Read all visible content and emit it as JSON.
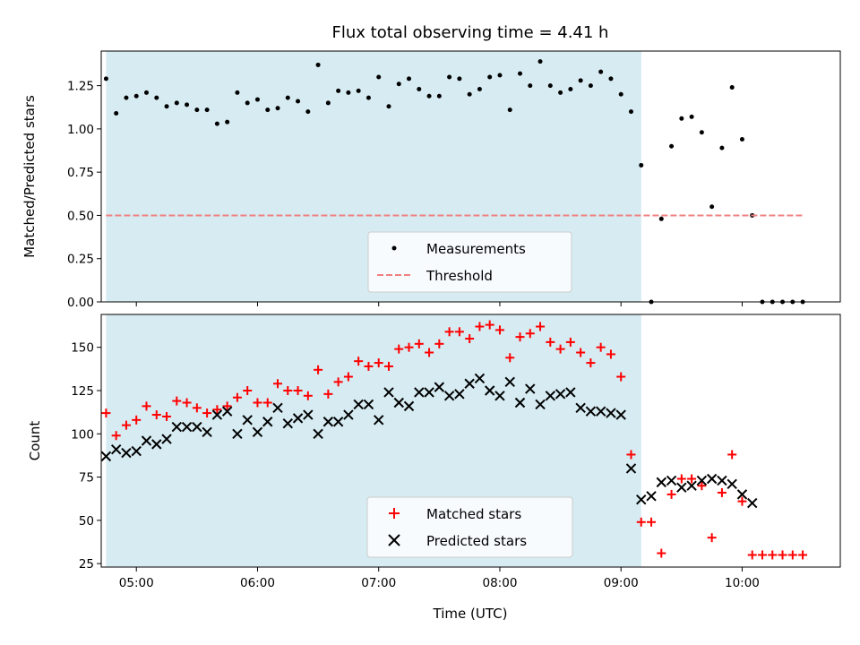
{
  "chart_data": [
    {
      "type": "scatter",
      "title": "Flux total observing time = 4.41 h",
      "xlabel": "",
      "ylabel": "Matched/Predicted stars",
      "ylim": [
        0,
        1.45
      ],
      "yticks": [
        0.0,
        0.25,
        0.5,
        0.75,
        1.0,
        1.25
      ],
      "ytick_labels": [
        "0.00",
        "0.25",
        "0.50",
        "0.75",
        "1.00",
        "1.25"
      ],
      "shaded_span": [
        "04:45",
        "09:10"
      ],
      "legend": {
        "position": "lower center",
        "entries": [
          "Measurements",
          "Threshold"
        ]
      },
      "series": [
        {
          "name": "Measurements",
          "marker": "dot",
          "color": "#000000",
          "x": [
            "04:45",
            "04:50",
            "04:55",
            "05:00",
            "05:05",
            "05:10",
            "05:15",
            "05:20",
            "05:25",
            "05:30",
            "05:35",
            "05:40",
            "05:45",
            "05:50",
            "05:55",
            "06:00",
            "06:05",
            "06:10",
            "06:15",
            "06:20",
            "06:25",
            "06:30",
            "06:35",
            "06:40",
            "06:45",
            "06:50",
            "06:55",
            "07:00",
            "07:05",
            "07:10",
            "07:15",
            "07:20",
            "07:25",
            "07:30",
            "07:35",
            "07:40",
            "07:45",
            "07:50",
            "07:55",
            "08:00",
            "08:05",
            "08:10",
            "08:15",
            "08:20",
            "08:25",
            "08:30",
            "08:35",
            "08:40",
            "08:45",
            "08:50",
            "08:55",
            "09:00",
            "09:05",
            "09:10",
            "09:15",
            "09:20",
            "09:25",
            "09:30",
            "09:35",
            "09:40",
            "09:45",
            "09:50",
            "09:55",
            "10:00",
            "10:05",
            "10:10",
            "10:15",
            "10:20",
            "10:25",
            "10:30"
          ],
          "y": [
            1.29,
            1.09,
            1.18,
            1.19,
            1.21,
            1.18,
            1.13,
            1.15,
            1.14,
            1.11,
            1.11,
            1.03,
            1.04,
            1.21,
            1.15,
            1.17,
            1.11,
            1.12,
            1.18,
            1.16,
            1.1,
            1.37,
            1.15,
            1.22,
            1.21,
            1.22,
            1.18,
            1.3,
            1.13,
            1.26,
            1.29,
            1.23,
            1.19,
            1.19,
            1.3,
            1.29,
            1.2,
            1.23,
            1.3,
            1.31,
            1.11,
            1.32,
            1.25,
            1.39,
            1.25,
            1.21,
            1.23,
            1.28,
            1.25,
            1.33,
            1.29,
            1.2,
            1.1,
            0.79,
            0.0,
            0.48,
            0.9,
            1.06,
            1.07,
            0.98,
            0.55,
            0.89,
            1.24,
            0.94,
            0.5,
            0.0,
            0.0,
            0.0,
            0.0,
            0.0
          ]
        },
        {
          "name": "Threshold",
          "style": "dashed",
          "color": "#f08080",
          "x": [
            "04:45",
            "10:30"
          ],
          "y": [
            0.5,
            0.5
          ]
        }
      ]
    },
    {
      "type": "scatter",
      "title": "",
      "xlabel": "Time (UTC)",
      "ylabel": "Count",
      "ylim": [
        23,
        169
      ],
      "yticks": [
        25,
        50,
        75,
        100,
        125,
        150
      ],
      "ytick_labels": [
        "25",
        "50",
        "75",
        "100",
        "125",
        "150"
      ],
      "xticks": [
        "05:00",
        "06:00",
        "07:00",
        "08:00",
        "09:00",
        "10:00"
      ],
      "shaded_span": [
        "04:45",
        "09:10"
      ],
      "legend": {
        "position": "lower center",
        "entries": [
          "Matched stars",
          "Predicted stars"
        ]
      },
      "series": [
        {
          "name": "Matched stars",
          "marker": "plus",
          "color": "#ff0000",
          "x": [
            "04:45",
            "04:50",
            "04:55",
            "05:00",
            "05:05",
            "05:10",
            "05:15",
            "05:20",
            "05:25",
            "05:30",
            "05:35",
            "05:40",
            "05:45",
            "05:50",
            "05:55",
            "06:00",
            "06:05",
            "06:10",
            "06:15",
            "06:20",
            "06:25",
            "06:30",
            "06:35",
            "06:40",
            "06:45",
            "06:50",
            "06:55",
            "07:00",
            "07:05",
            "07:10",
            "07:15",
            "07:20",
            "07:25",
            "07:30",
            "07:35",
            "07:40",
            "07:45",
            "07:50",
            "07:55",
            "08:00",
            "08:05",
            "08:10",
            "08:15",
            "08:20",
            "08:25",
            "08:30",
            "08:35",
            "08:40",
            "08:45",
            "08:50",
            "08:55",
            "09:00",
            "09:05",
            "09:10",
            "09:15",
            "09:20",
            "09:25",
            "09:30",
            "09:35",
            "09:40",
            "09:45",
            "09:50",
            "09:55",
            "10:00",
            "10:05",
            "10:10",
            "10:15",
            "10:20",
            "10:25",
            "10:30"
          ],
          "y": [
            112,
            99,
            105,
            108,
            116,
            111,
            110,
            119,
            118,
            115,
            112,
            114,
            116,
            121,
            125,
            118,
            118,
            129,
            125,
            125,
            122,
            137,
            123,
            130,
            133,
            142,
            139,
            141,
            139,
            149,
            150,
            152,
            147,
            152,
            159,
            159,
            155,
            162,
            163,
            160,
            144,
            156,
            158,
            162,
            153,
            149,
            153,
            147,
            141,
            150,
            146,
            133,
            88,
            49,
            49,
            31,
            65,
            74,
            74,
            70,
            40,
            66,
            88,
            61,
            30,
            30,
            30,
            30,
            30,
            30
          ]
        },
        {
          "name": "Predicted stars",
          "marker": "x",
          "color": "#000000",
          "x": [
            "04:45",
            "04:50",
            "04:55",
            "05:00",
            "05:05",
            "05:10",
            "05:15",
            "05:20",
            "05:25",
            "05:30",
            "05:35",
            "05:40",
            "05:45",
            "05:50",
            "05:55",
            "06:00",
            "06:05",
            "06:10",
            "06:15",
            "06:20",
            "06:25",
            "06:30",
            "06:35",
            "06:40",
            "06:45",
            "06:50",
            "06:55",
            "07:00",
            "07:05",
            "07:10",
            "07:15",
            "07:20",
            "07:25",
            "07:30",
            "07:35",
            "07:40",
            "07:45",
            "07:50",
            "07:55",
            "08:00",
            "08:05",
            "08:10",
            "08:15",
            "08:20",
            "08:25",
            "08:30",
            "08:35",
            "08:40",
            "08:45",
            "08:50",
            "08:55",
            "09:00",
            "09:05",
            "09:10",
            "09:15",
            "09:20",
            "09:25",
            "09:30",
            "09:35",
            "09:40",
            "09:45",
            "09:50",
            "09:55",
            "10:00",
            "10:05"
          ],
          "y": [
            87,
            91,
            89,
            90,
            96,
            94,
            97,
            104,
            104,
            104,
            101,
            111,
            113,
            100,
            108,
            101,
            107,
            115,
            106,
            109,
            111,
            100,
            107,
            107,
            111,
            117,
            117,
            108,
            124,
            118,
            116,
            124,
            124,
            127,
            122,
            123,
            129,
            132,
            125,
            122,
            130,
            118,
            126,
            117,
            122,
            123,
            124,
            115,
            113,
            113,
            112,
            111,
            80,
            62,
            64,
            72,
            73,
            69,
            70,
            73,
            74,
            73,
            71,
            65,
            60
          ]
        }
      ]
    }
  ]
}
